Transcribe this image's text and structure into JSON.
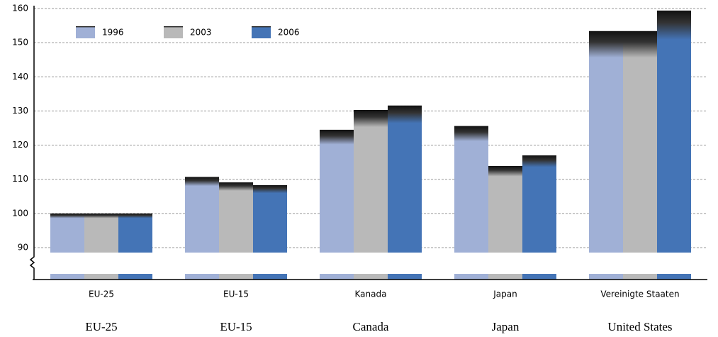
{
  "chart_data": {
    "type": "bar",
    "categories": [
      "EU-25",
      "EU-15",
      "Kanada",
      "Japan",
      "Vereinigte Staaten"
    ],
    "categories_translated": [
      "EU-25",
      "EU-15",
      "Canada",
      "Japan",
      "United States"
    ],
    "series": [
      {
        "name": "1996",
        "color": "#a0b0d6",
        "values": [
          100,
          110.7,
          124.5,
          125.6,
          153.4
        ]
      },
      {
        "name": "2003",
        "color": "#b9b9b9",
        "values": [
          100,
          109.1,
          130.3,
          113.9,
          153.4
        ]
      },
      {
        "name": "2006",
        "color": "#4474b6",
        "values": [
          100,
          108.3,
          131.6,
          117,
          159.4
        ]
      }
    ],
    "ylim": [
      90,
      160
    ],
    "yticks": [
      90,
      100,
      110,
      120,
      130,
      140,
      150,
      160
    ],
    "grid": true,
    "legend": "top-left"
  }
}
